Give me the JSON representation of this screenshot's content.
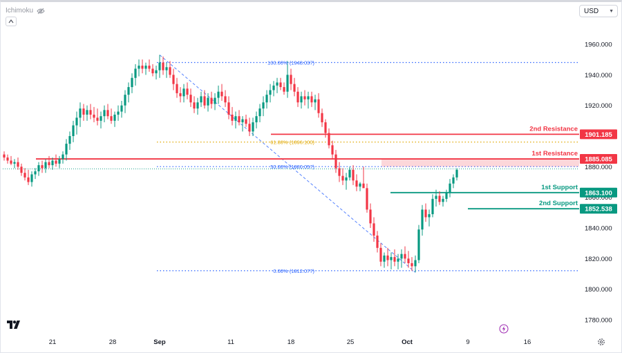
{
  "indicator": {
    "name": "Ichimoku",
    "visibility_icon": "eye-slash-icon"
  },
  "currency": {
    "selected": "USD",
    "icon": "chevron-down-icon"
  },
  "chart_data": {
    "type": "candlestick",
    "y_range": [
      1770,
      1975
    ],
    "y_ticks": [
      {
        "value": 1780,
        "label": "1780.000"
      },
      {
        "value": 1800,
        "label": "1800.000"
      },
      {
        "value": 1820,
        "label": "1820.000"
      },
      {
        "value": 1840,
        "label": "1840.000"
      },
      {
        "value": 1860,
        "label": "1860.000"
      },
      {
        "value": 1880,
        "label": "1880.000"
      },
      {
        "value": 1900,
        "label": "1900.000"
      },
      {
        "value": 1920,
        "label": "1920.000"
      },
      {
        "value": 1940,
        "label": "1940.000"
      },
      {
        "value": 1960,
        "label": "1960.000"
      }
    ],
    "x_ticks": [
      {
        "label": "21",
        "bold": false
      },
      {
        "label": "28",
        "bold": false
      },
      {
        "label": "Sep",
        "bold": true
      },
      {
        "label": "11",
        "bold": false
      },
      {
        "label": "18",
        "bold": false
      },
      {
        "label": "25",
        "bold": false
      },
      {
        "label": "Oct",
        "bold": true
      },
      {
        "label": "9",
        "bold": false
      },
      {
        "label": "16",
        "bold": false
      }
    ],
    "current_price": 1878.6,
    "levels": [
      {
        "label": "2nd Resistance",
        "price_label": "1901.185",
        "value": 1901.185,
        "color": "#f23645"
      },
      {
        "label": "1st Resistance",
        "price_label": "1885.085",
        "value": 1885.085,
        "color": "#f23645"
      },
      {
        "label": "1st Support",
        "price_label": "1863.100",
        "value": 1863.1,
        "color": "#089981"
      },
      {
        "label": "2nd Support",
        "price_label": "1852.538",
        "value": 1852.538,
        "color": "#089981"
      }
    ],
    "fibonacci": [
      {
        "label": "100.00% (1948.037)",
        "value": 1948.037,
        "color": "#2962ff"
      },
      {
        "label": "61.80% (1896.100)",
        "value": 1896.1,
        "color": "#e0a800"
      },
      {
        "label": "50.00% (1880.057)",
        "value": 1880.057,
        "color": "#2962ff"
      },
      {
        "label": "0.00% (1812.077)",
        "value": 1812.077,
        "color": "#2962ff"
      }
    ],
    "candles": [
      [
        1888,
        1890,
        1884,
        1886
      ],
      [
        1886,
        1888,
        1882,
        1884
      ],
      [
        1884,
        1887,
        1881,
        1882
      ],
      [
        1882,
        1885,
        1879,
        1883
      ],
      [
        1883,
        1886,
        1878,
        1880
      ],
      [
        1880,
        1882,
        1874,
        1876
      ],
      [
        1876,
        1879,
        1871,
        1873
      ],
      [
        1873,
        1878,
        1868,
        1870
      ],
      [
        1870,
        1877,
        1867,
        1875
      ],
      [
        1875,
        1879,
        1872,
        1877
      ],
      [
        1877,
        1883,
        1874,
        1881
      ],
      [
        1881,
        1884,
        1876,
        1879
      ],
      [
        1879,
        1885,
        1876,
        1883
      ],
      [
        1883,
        1887,
        1879,
        1881
      ],
      [
        1881,
        1886,
        1878,
        1884
      ],
      [
        1884,
        1888,
        1880,
        1882
      ],
      [
        1882,
        1887,
        1879,
        1885
      ],
      [
        1885,
        1890,
        1882,
        1888
      ],
      [
        1888,
        1898,
        1884,
        1895
      ],
      [
        1895,
        1903,
        1891,
        1900
      ],
      [
        1900,
        1910,
        1896,
        1907
      ],
      [
        1907,
        1916,
        1901,
        1912
      ],
      [
        1912,
        1922,
        1906,
        1918
      ],
      [
        1918,
        1921,
        1910,
        1914
      ],
      [
        1914,
        1920,
        1910,
        1917
      ],
      [
        1917,
        1921,
        1911,
        1914
      ],
      [
        1914,
        1919,
        1909,
        1912
      ],
      [
        1912,
        1918,
        1907,
        1910
      ],
      [
        1910,
        1916,
        1905,
        1913
      ],
      [
        1913,
        1920,
        1909,
        1917
      ],
      [
        1917,
        1921,
        1911,
        1913
      ],
      [
        1913,
        1918,
        1908,
        1910
      ],
      [
        1910,
        1916,
        1906,
        1914
      ],
      [
        1914,
        1920,
        1910,
        1916
      ],
      [
        1916,
        1923,
        1912,
        1920
      ],
      [
        1920,
        1930,
        1915,
        1927
      ],
      [
        1927,
        1935,
        1922,
        1932
      ],
      [
        1932,
        1941,
        1928,
        1938
      ],
      [
        1938,
        1947,
        1933,
        1944
      ],
      [
        1944,
        1950,
        1939,
        1946
      ],
      [
        1946,
        1950,
        1941,
        1944
      ],
      [
        1944,
        1948,
        1940,
        1946
      ],
      [
        1946,
        1950,
        1942,
        1944
      ],
      [
        1944,
        1947,
        1939,
        1941
      ],
      [
        1941,
        1946,
        1937,
        1943
      ],
      [
        1943,
        1953,
        1938,
        1948
      ],
      [
        1948,
        1952,
        1940,
        1943
      ],
      [
        1943,
        1948,
        1938,
        1945
      ],
      [
        1945,
        1949,
        1938,
        1940
      ],
      [
        1940,
        1944,
        1930,
        1934
      ],
      [
        1934,
        1938,
        1925,
        1928
      ],
      [
        1928,
        1932,
        1922,
        1926
      ],
      [
        1926,
        1934,
        1922,
        1931
      ],
      [
        1931,
        1935,
        1924,
        1927
      ],
      [
        1927,
        1931,
        1919,
        1922
      ],
      [
        1922,
        1926,
        1915,
        1918
      ],
      [
        1918,
        1925,
        1914,
        1922
      ],
      [
        1922,
        1929,
        1919,
        1926
      ],
      [
        1926,
        1930,
        1918,
        1920
      ],
      [
        1920,
        1928,
        1916,
        1925
      ],
      [
        1925,
        1929,
        1918,
        1921
      ],
      [
        1921,
        1928,
        1917,
        1925
      ],
      [
        1925,
        1933,
        1921,
        1929
      ],
      [
        1929,
        1934,
        1923,
        1926
      ],
      [
        1926,
        1930,
        1919,
        1922
      ],
      [
        1922,
        1926,
        1911,
        1914
      ],
      [
        1914,
        1919,
        1907,
        1910
      ],
      [
        1910,
        1916,
        1905,
        1913
      ],
      [
        1913,
        1917,
        1907,
        1909
      ],
      [
        1909,
        1913,
        1903,
        1911
      ],
      [
        1911,
        1914,
        1906,
        1908
      ],
      [
        1908,
        1912,
        1900,
        1903
      ],
      [
        1903,
        1912,
        1900,
        1909
      ],
      [
        1909,
        1916,
        1905,
        1913
      ],
      [
        1913,
        1921,
        1909,
        1918
      ],
      [
        1918,
        1926,
        1913,
        1922
      ],
      [
        1922,
        1930,
        1918,
        1927
      ],
      [
        1927,
        1934,
        1922,
        1930
      ],
      [
        1930,
        1936,
        1926,
        1933
      ],
      [
        1933,
        1938,
        1928,
        1935
      ],
      [
        1935,
        1938,
        1930,
        1932
      ],
      [
        1932,
        1935,
        1927,
        1929
      ],
      [
        1929,
        1949,
        1925,
        1940
      ],
      [
        1940,
        1944,
        1930,
        1934
      ],
      [
        1934,
        1938,
        1926,
        1929
      ],
      [
        1929,
        1932,
        1919,
        1922
      ],
      [
        1922,
        1929,
        1918,
        1926
      ],
      [
        1926,
        1930,
        1920,
        1924
      ],
      [
        1924,
        1929,
        1918,
        1926
      ],
      [
        1926,
        1929,
        1919,
        1922
      ],
      [
        1922,
        1927,
        1917,
        1924
      ],
      [
        1924,
        1928,
        1912,
        1915
      ],
      [
        1915,
        1918,
        1906,
        1909
      ],
      [
        1909,
        1911,
        1899,
        1902
      ],
      [
        1902,
        1905,
        1892,
        1894
      ],
      [
        1894,
        1897,
        1885,
        1888
      ],
      [
        1888,
        1891,
        1876,
        1879
      ],
      [
        1879,
        1883,
        1870,
        1874
      ],
      [
        1874,
        1879,
        1868,
        1871
      ],
      [
        1871,
        1876,
        1865,
        1873
      ],
      [
        1873,
        1880,
        1871,
        1878
      ],
      [
        1878,
        1881,
        1868,
        1871
      ],
      [
        1871,
        1875,
        1864,
        1867
      ],
      [
        1867,
        1870,
        1864,
        1869
      ],
      [
        1869,
        1880,
        1867,
        1866
      ],
      [
        1866,
        1869,
        1850,
        1852
      ],
      [
        1852,
        1856,
        1840,
        1843
      ],
      [
        1843,
        1847,
        1831,
        1835
      ],
      [
        1835,
        1838,
        1824,
        1827
      ],
      [
        1827,
        1830,
        1815,
        1818
      ],
      [
        1818,
        1824,
        1814,
        1822
      ],
      [
        1822,
        1827,
        1815,
        1819
      ],
      [
        1819,
        1824,
        1813,
        1821
      ],
      [
        1821,
        1826,
        1815,
        1818
      ],
      [
        1818,
        1823,
        1813,
        1820
      ],
      [
        1820,
        1826,
        1814,
        1823
      ],
      [
        1823,
        1828,
        1817,
        1820
      ],
      [
        1820,
        1825,
        1814,
        1817
      ],
      [
        1817,
        1821,
        1812,
        1815
      ],
      [
        1815,
        1822,
        1811,
        1819
      ],
      [
        1819,
        1842,
        1817,
        1839
      ],
      [
        1839,
        1855,
        1835,
        1852
      ],
      [
        1852,
        1856,
        1844,
        1847
      ],
      [
        1847,
        1852,
        1841,
        1849
      ],
      [
        1849,
        1862,
        1847,
        1859
      ],
      [
        1859,
        1865,
        1854,
        1861
      ],
      [
        1861,
        1864,
        1855,
        1857
      ],
      [
        1857,
        1861,
        1854,
        1859
      ],
      [
        1859,
        1865,
        1857,
        1863
      ],
      [
        1863,
        1872,
        1860,
        1869
      ],
      [
        1869,
        1875,
        1866,
        1873
      ],
      [
        1873,
        1879,
        1871,
        1878
      ]
    ]
  }
}
